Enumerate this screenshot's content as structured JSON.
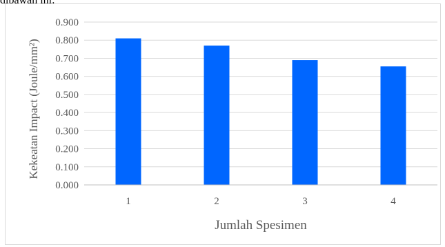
{
  "page": {
    "top_text_fragment": "dibawah ini:"
  },
  "chart_data": {
    "type": "bar",
    "categories": [
      "1",
      "2",
      "3",
      "4"
    ],
    "values": [
      0.81,
      0.77,
      0.69,
      0.655
    ],
    "title": "",
    "xlabel": "Jumlah Spesimen",
    "ylabel": "Kekeatan Impact (Joule/mm²)",
    "ylim": [
      0,
      0.9
    ],
    "yticks": [
      "0.000",
      "0.100",
      "0.200",
      "0.300",
      "0.400",
      "0.500",
      "0.600",
      "0.700",
      "0.800",
      "0.900"
    ],
    "grid": true,
    "legend": "none",
    "bar_color": "#0066ff",
    "grid_color": "#d9d9d9",
    "axis_color": "#bfbfbf",
    "text_color": "#595959"
  }
}
